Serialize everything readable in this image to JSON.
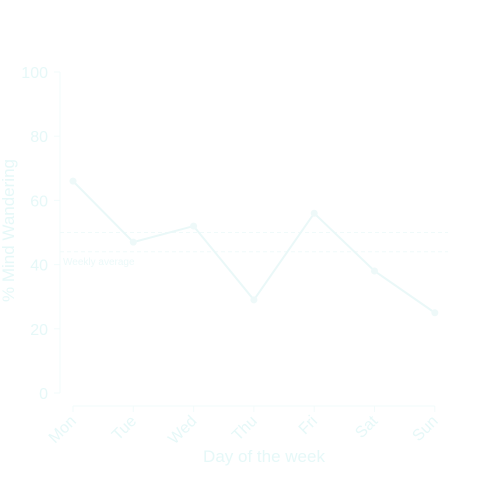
{
  "chart_data": {
    "type": "line",
    "xlabel": "Day of the week",
    "ylabel": "% Mind Wandering",
    "categories": [
      "Mon",
      "Tue",
      "Wed",
      "Thu",
      "Fri",
      "Sat",
      "Sun"
    ],
    "series": [
      {
        "values": [
          66,
          47,
          52,
          29,
          56,
          38,
          25
        ]
      }
    ],
    "ylim": [
      0,
      100
    ],
    "yticks": [
      0,
      20,
      40,
      60,
      80,
      100
    ],
    "reference_lines": [
      {
        "value": 50
      },
      {
        "value": 44,
        "label": "Weekly average"
      }
    ],
    "grid": false,
    "colors": {
      "line": "#eaf8f8",
      "text": "#e6f8f8",
      "axis": "#f2fbfb"
    }
  }
}
